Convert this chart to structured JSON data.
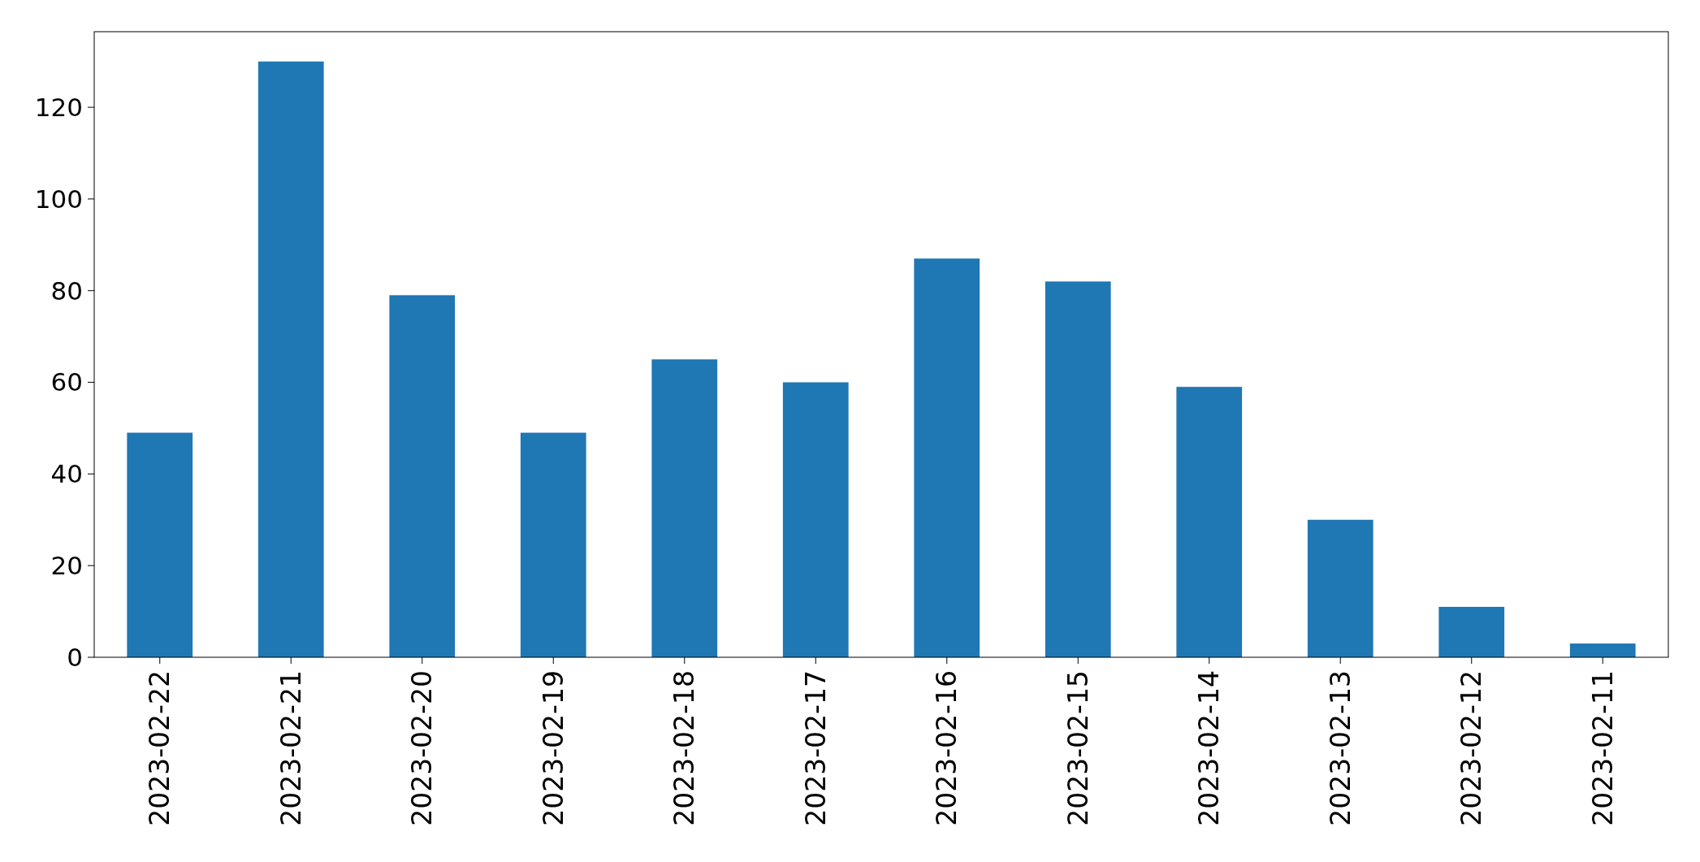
{
  "chart_data": {
    "type": "bar",
    "categories": [
      "2023-02-22",
      "2023-02-21",
      "2023-02-20",
      "2023-02-19",
      "2023-02-18",
      "2023-02-17",
      "2023-02-16",
      "2023-02-15",
      "2023-02-14",
      "2023-02-13",
      "2023-02-12",
      "2023-02-11"
    ],
    "values": [
      49,
      130,
      79,
      49,
      65,
      60,
      87,
      82,
      59,
      30,
      11,
      3
    ],
    "color": "#1f77b4",
    "ylim": [
      0,
      136.5
    ],
    "yticks": [
      0,
      20,
      40,
      60,
      80,
      100,
      120
    ],
    "grid": false
  }
}
